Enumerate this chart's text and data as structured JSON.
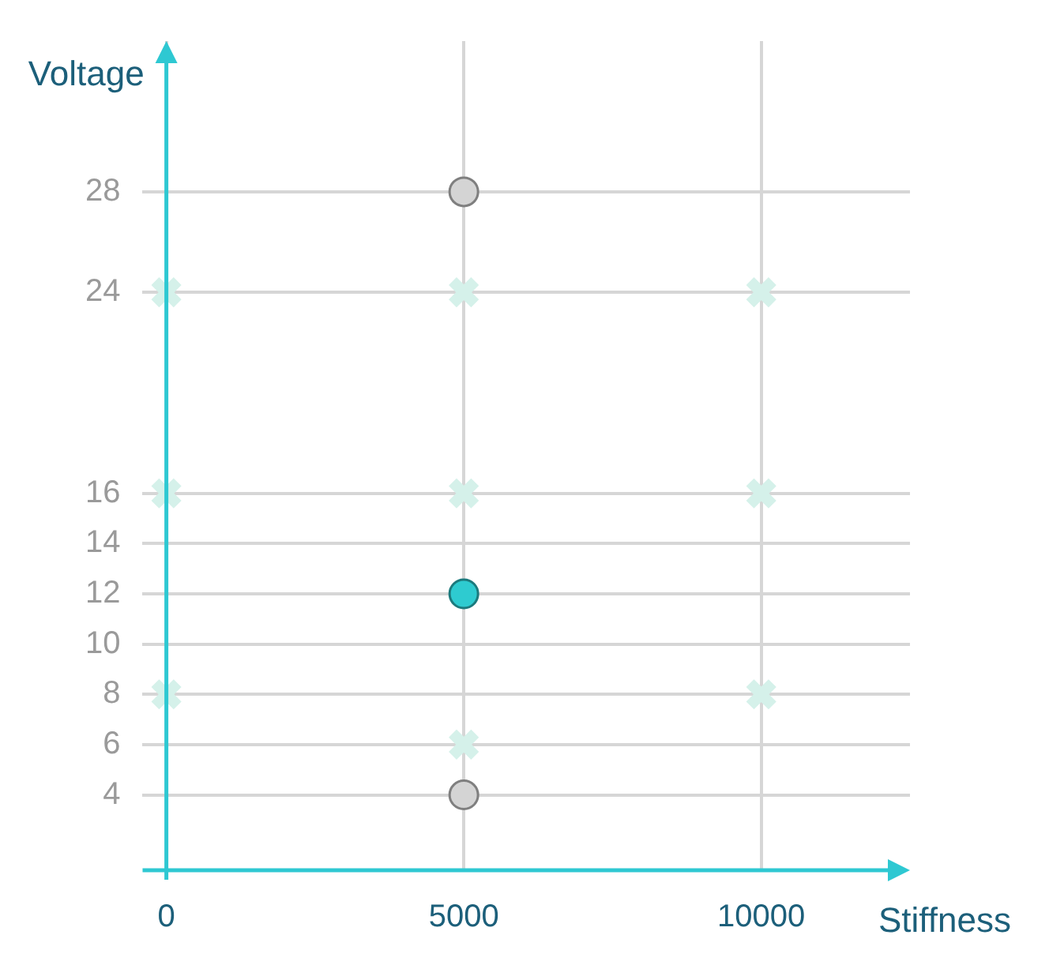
{
  "chart_data": {
    "type": "scatter",
    "xlabel": "Stiffness",
    "ylabel": "Voltage",
    "xlim": [
      -400,
      12500
    ],
    "ylim": [
      1,
      34
    ],
    "xticks": [
      0,
      5000,
      10000
    ],
    "yticks": [
      4,
      6,
      8,
      10,
      12,
      14,
      16,
      24,
      28
    ],
    "grid": true,
    "legend": false,
    "series": [
      {
        "color": "#d5f1ea",
        "marker": "cross",
        "x": [
          0,
          5000,
          10000,
          0,
          5000,
          10000,
          0,
          10000,
          5000
        ],
        "values": [
          24,
          24,
          24,
          16,
          16,
          16,
          8,
          8,
          6
        ]
      },
      {
        "color": "#d4d4d4",
        "marker": "circle",
        "x": [
          5000,
          5000
        ],
        "values": [
          28,
          4
        ]
      },
      {
        "color": "#2ecbd0",
        "marker": "circle",
        "x": [
          5000
        ],
        "values": [
          12
        ]
      }
    ]
  }
}
